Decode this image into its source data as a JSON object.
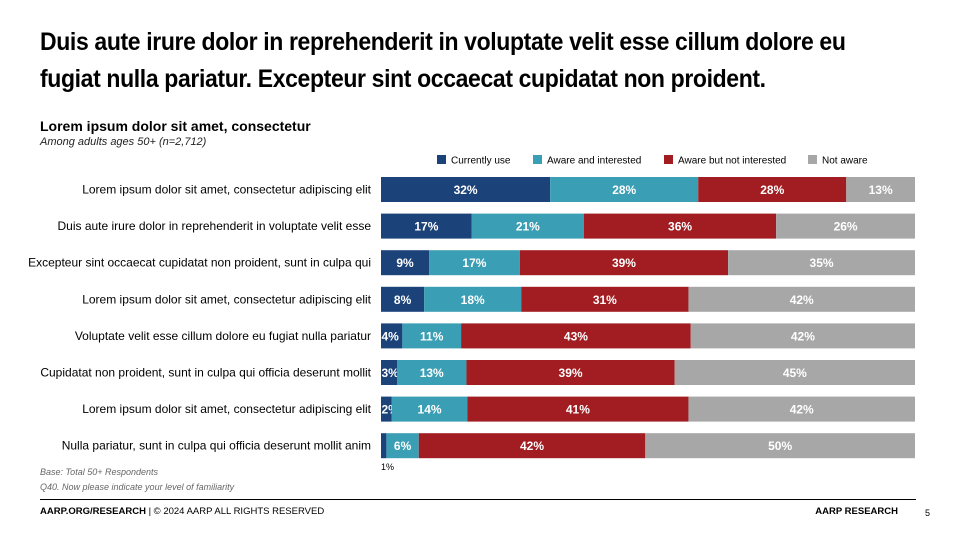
{
  "headline": "Duis aute irure dolor in reprehenderit in voluptate velit esse cillum dolore eu fugiat nulla pariatur. Excepteur sint occaecat cupidatat non proident.",
  "footnotes": {
    "base": "Base: Total 50+ Respondents",
    "question": "Q40. Now please indicate your level of familiarity"
  },
  "footer": {
    "site": "AARP.ORG/RESEARCH",
    "rights": " | © 2024 AARP ALL RIGHTS RESERVED",
    "brand": "AARP RESEARCH",
    "page": "5"
  },
  "chart_data": {
    "type": "bar",
    "orientation": "horizontal",
    "stacked": true,
    "title": "Lorem ipsum dolor sit amet, consectetur",
    "subtitle": "Among adults ages 50+ (n=2,712)",
    "legend_position": "top-right",
    "value_suffix": "%",
    "categories": [
      "Lorem ipsum dolor sit amet, consectetur adipiscing elit",
      "Duis aute irure dolor in reprehenderit in voluptate velit esse",
      "Excepteur sint occaecat cupidatat non proident, sunt in culpa qui",
      "Lorem ipsum dolor sit amet, consectetur adipiscing elit",
      "Voluptate velit esse cillum dolore eu fugiat nulla pariatur",
      "Cupidatat non proident, sunt in culpa qui officia deserunt mollit",
      "Lorem ipsum dolor sit amet, consectetur adipiscing elit",
      "Nulla pariatur, sunt in culpa qui officia deserunt mollit anim"
    ],
    "series": [
      {
        "name": "Currently use",
        "color": "#1B4279",
        "values": [
          32,
          17,
          9,
          8,
          4,
          3,
          2,
          1
        ]
      },
      {
        "name": "Aware and interested",
        "color": "#3A9EB4",
        "values": [
          28,
          21,
          17,
          18,
          11,
          13,
          14,
          6
        ]
      },
      {
        "name": "Aware but not interested",
        "color": "#A11D21",
        "values": [
          28,
          36,
          39,
          31,
          43,
          39,
          41,
          42
        ]
      },
      {
        "name": "Not aware",
        "color": "#A7A7A7",
        "values": [
          13,
          26,
          35,
          42,
          42,
          45,
          42,
          50
        ]
      }
    ]
  }
}
